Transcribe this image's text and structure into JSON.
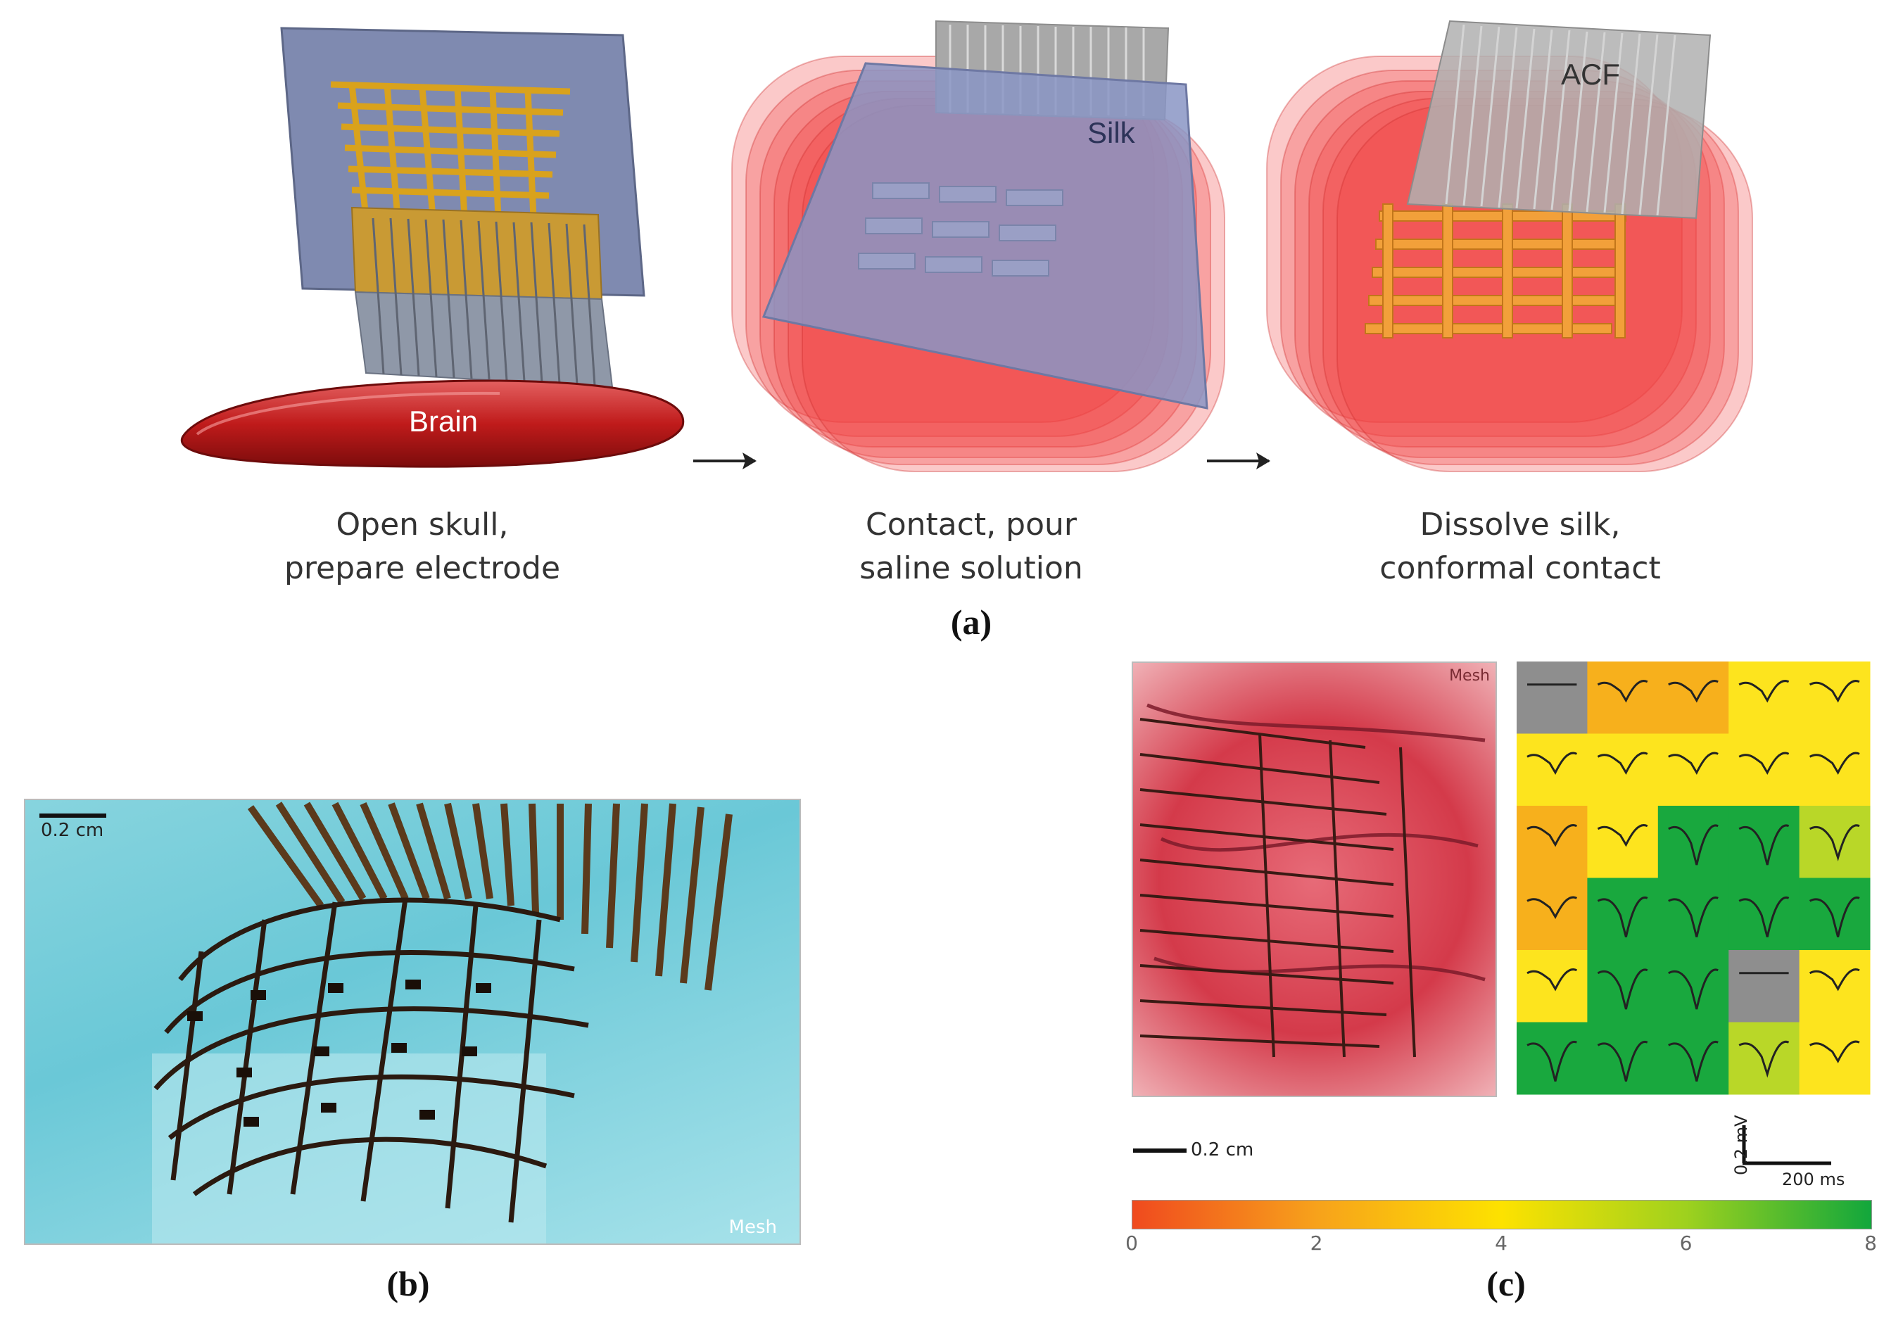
{
  "panel_a": {
    "label": "(a)",
    "steps": [
      {
        "caption_line1": "Open skull,",
        "caption_line2": "prepare electrode",
        "tag": "Brain"
      },
      {
        "caption_line1": "Contact, pour",
        "caption_line2": "saline solution",
        "tag": "Silk"
      },
      {
        "caption_line1": "Dissolve silk,",
        "caption_line2": "conformal contact",
        "tag": "ACF"
      }
    ]
  },
  "panel_b": {
    "label": "(b)",
    "scale_label": "0.2 cm",
    "tag": "Mesh"
  },
  "panel_c": {
    "label": "(c)",
    "photo_tag": "Mesh",
    "scale_label": "0.2 cm",
    "scalebar_mv": "0.2 mV",
    "scalebar_ms": "200 ms",
    "colorbar": {
      "ticks": [
        "0",
        "2",
        "4",
        "6",
        "8"
      ],
      "colors": [
        "#f04a1e",
        "#f7a21b",
        "#fde200",
        "#9ed11e",
        "#12a73c"
      ]
    },
    "grid": {
      "rows": 6,
      "cols": 5,
      "cells": [
        [
          "gray",
          "orange",
          "orange",
          "yellow",
          "yellow"
        ],
        [
          "yellow",
          "yellow",
          "yellow",
          "yellow",
          "yellow"
        ],
        [
          "orange",
          "yellow",
          "green",
          "green",
          "lime"
        ],
        [
          "orange",
          "green",
          "green",
          "green",
          "green"
        ],
        [
          "yellow",
          "green",
          "green",
          "gray",
          "yellow"
        ],
        [
          "green",
          "green",
          "green",
          "lime",
          "yellow"
        ]
      ],
      "cell_colors": {
        "gray": "#8e8e8e",
        "orange": "#f7b01c",
        "yellow": "#fde41e",
        "green": "#19a83e",
        "lime": "#b9d728"
      }
    }
  }
}
